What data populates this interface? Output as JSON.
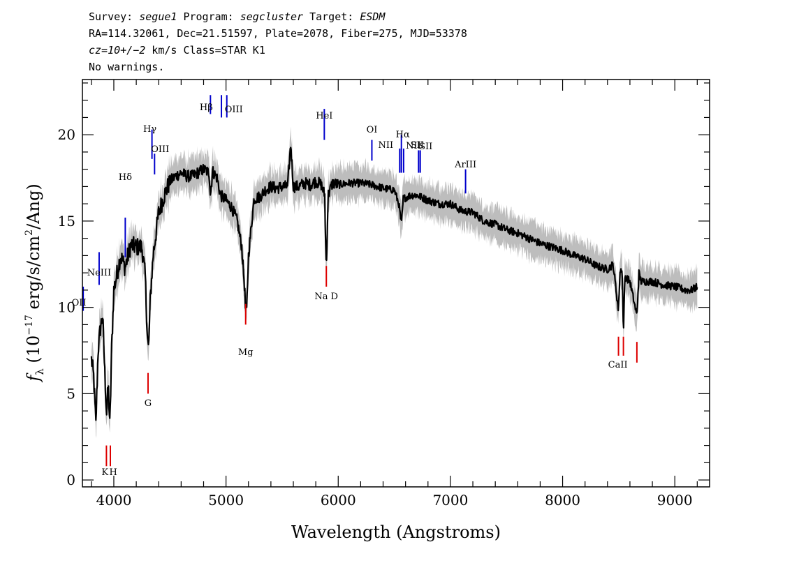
{
  "header": {
    "line1": {
      "survey_label": "Survey: ",
      "survey": "segue1",
      "program_label": " Program: ",
      "program": "segcluster",
      "target_label": " Target: ",
      "target": "ESDM"
    },
    "line2": "RA=114.32061, Dec=21.51597, Plate=2078, Fiber=275, MJD=53378",
    "line3": {
      "cz": "cz=10+/−2",
      "rest": " km/s Class=STAR K1"
    },
    "line4": "No warnings."
  },
  "chart_data": {
    "type": "line",
    "xlabel": "Wavelength (Angstroms)",
    "ylabel": "f_λ (10^-17 erg/s/cm^2/Ang)",
    "xlim": [
      3720,
      9310
    ],
    "ylim": [
      -0.4,
      23.2
    ],
    "x_ticks": [
      4000,
      5000,
      6000,
      7000,
      8000,
      9000
    ],
    "y_ticks": [
      0,
      5,
      10,
      15,
      20
    ],
    "series": [
      {
        "role": "flux",
        "color": "#000000",
        "points": [
          [
            3800,
            7.0
          ],
          [
            3820,
            6.0
          ],
          [
            3840,
            3.2
          ],
          [
            3860,
            7.5
          ],
          [
            3880,
            8.8
          ],
          [
            3900,
            9.5
          ],
          [
            3920,
            6.2
          ],
          [
            3935,
            3.8
          ],
          [
            3950,
            5.5
          ],
          [
            3965,
            3.0
          ],
          [
            3980,
            7.5
          ],
          [
            4000,
            11.0
          ],
          [
            4030,
            12.0
          ],
          [
            4060,
            13.0
          ],
          [
            4100,
            12.3
          ],
          [
            4150,
            13.6
          ],
          [
            4200,
            13.5
          ],
          [
            4250,
            13.5
          ],
          [
            4280,
            11.8
          ],
          [
            4300,
            8.2
          ],
          [
            4310,
            7.5
          ],
          [
            4325,
            10.5
          ],
          [
            4350,
            13.0
          ],
          [
            4380,
            14.5
          ],
          [
            4400,
            15.5
          ],
          [
            4450,
            16.5
          ],
          [
            4500,
            17.3
          ],
          [
            4550,
            17.6
          ],
          [
            4600,
            17.8
          ],
          [
            4650,
            17.6
          ],
          [
            4700,
            17.6
          ],
          [
            4750,
            17.8
          ],
          [
            4800,
            18.0
          ],
          [
            4850,
            17.8
          ],
          [
            4861,
            16.5
          ],
          [
            4880,
            17.9
          ],
          [
            4920,
            17.5
          ],
          [
            4950,
            16.5
          ],
          [
            5000,
            16.2
          ],
          [
            5050,
            15.8
          ],
          [
            5100,
            15.0
          ],
          [
            5140,
            13.5
          ],
          [
            5167,
            11.0
          ],
          [
            5172,
            10.0
          ],
          [
            5184,
            9.8
          ],
          [
            5200,
            13.0
          ],
          [
            5250,
            16.3
          ],
          [
            5300,
            16.4
          ],
          [
            5350,
            16.8
          ],
          [
            5400,
            17.0
          ],
          [
            5450,
            16.9
          ],
          [
            5500,
            17.0
          ],
          [
            5550,
            17.0
          ],
          [
            5577,
            19.5
          ],
          [
            5600,
            17.0
          ],
          [
            5650,
            17.0
          ],
          [
            5700,
            17.2
          ],
          [
            5750,
            17.1
          ],
          [
            5800,
            17.3
          ],
          [
            5850,
            17.1
          ],
          [
            5880,
            16.5
          ],
          [
            5890,
            12.8
          ],
          [
            5896,
            12.7
          ],
          [
            5910,
            16.5
          ],
          [
            5950,
            17.2
          ],
          [
            6000,
            17.1
          ],
          [
            6100,
            17.2
          ],
          [
            6200,
            17.2
          ],
          [
            6300,
            17.1
          ],
          [
            6400,
            16.9
          ],
          [
            6500,
            16.8
          ],
          [
            6540,
            16.0
          ],
          [
            6563,
            14.8
          ],
          [
            6580,
            16.3
          ],
          [
            6650,
            16.5
          ],
          [
            6700,
            16.5
          ],
          [
            6800,
            16.2
          ],
          [
            6900,
            16.0
          ],
          [
            7000,
            16.0
          ],
          [
            7100,
            15.6
          ],
          [
            7200,
            15.5
          ],
          [
            7300,
            15.0
          ],
          [
            7400,
            14.8
          ],
          [
            7500,
            14.5
          ],
          [
            7600,
            14.3
          ],
          [
            7700,
            14.0
          ],
          [
            7800,
            13.7
          ],
          [
            7900,
            13.5
          ],
          [
            8000,
            13.3
          ],
          [
            8100,
            13.0
          ],
          [
            8200,
            12.8
          ],
          [
            8300,
            12.4
          ],
          [
            8400,
            12.2
          ],
          [
            8450,
            12.5
          ],
          [
            8498,
            9.8
          ],
          [
            8510,
            12.0
          ],
          [
            8530,
            12.3
          ],
          [
            8542,
            8.5
          ],
          [
            8555,
            11.8
          ],
          [
            8600,
            11.5
          ],
          [
            8662,
            9.5
          ],
          [
            8680,
            12.0
          ],
          [
            8700,
            11.5
          ],
          [
            8800,
            11.5
          ],
          [
            8900,
            11.3
          ],
          [
            9000,
            11.2
          ],
          [
            9100,
            11.0
          ],
          [
            9150,
            11.0
          ],
          [
            9200,
            11.2
          ]
        ]
      },
      {
        "role": "noise",
        "color": "#bdbdbd"
      }
    ],
    "emission_lines": [
      {
        "label": "OII",
        "wave": 3727
      },
      {
        "label": "NeIII",
        "wave": 3869
      },
      {
        "label": "Hδ",
        "wave": 4102
      },
      {
        "label": "Hγ",
        "wave": 4340
      },
      {
        "label": "OIII",
        "wave": 4363
      },
      {
        "label": "Hβ",
        "wave": 4861
      },
      {
        "label": "OIII",
        "wave": 4959
      },
      {
        "label": "OIII",
        "wave": 5007
      },
      {
        "label": "HeI",
        "wave": 5876
      },
      {
        "label": "OI",
        "wave": 6300
      },
      {
        "label": "NII",
        "wave": 6548
      },
      {
        "label": "Hα",
        "wave": 6563
      },
      {
        "label": "NII",
        "wave": 6583
      },
      {
        "label": "SII",
        "wave": 6716
      },
      {
        "label": "SII",
        "wave": 6731
      },
      {
        "label": "ArIII",
        "wave": 7135
      }
    ],
    "absorption_lines": [
      {
        "label": "K",
        "wave": 3934
      },
      {
        "label": "H",
        "wave": 3969
      },
      {
        "label": "G",
        "wave": 4305
      },
      {
        "label": "Mg",
        "wave": 5175
      },
      {
        "label": "Na D",
        "wave": 5894
      },
      {
        "label": "CaII",
        "wave": 8498
      },
      {
        "label": "CaII",
        "wave": 8542
      },
      {
        "label": "CaII",
        "wave": 8662
      }
    ],
    "colors": {
      "emission": "#0000cc",
      "absorption": "#dd0000",
      "noise": "#bdbdbd",
      "flux": "#000000"
    }
  }
}
